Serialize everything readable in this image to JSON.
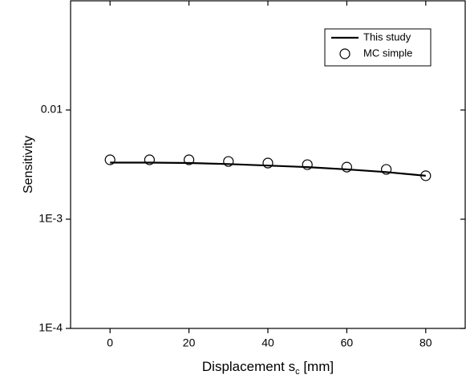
{
  "chart_data": {
    "type": "line",
    "log_y": true,
    "xlabel": "Displacement  s",
    "xlabel_subscript": "c",
    "xlabel_suffix": " [mm]",
    "ylabel": "Sensitivity",
    "x": [
      0,
      10,
      20,
      30,
      40,
      50,
      60,
      70,
      80
    ],
    "series": [
      {
        "name": "This study",
        "color": "#000000",
        "marker": "none",
        "values": [
          0.0033,
          0.0033,
          0.00327,
          0.0032,
          0.0031,
          0.003,
          0.00286,
          0.0027,
          0.0025
        ]
      },
      {
        "name": "MC simple",
        "color": "#000000",
        "marker": "circle-open",
        "values": [
          0.0035,
          0.0035,
          0.0035,
          0.00338,
          0.00327,
          0.00316,
          0.003,
          0.00286,
          0.0025
        ]
      }
    ],
    "xlim": [
      -10,
      90
    ],
    "xticks": [
      0,
      20,
      40,
      60,
      80
    ],
    "ylim": [
      0.0001,
      0.1
    ],
    "yticks": [
      {
        "value": 0.0001,
        "label": "1E-4"
      },
      {
        "value": 0.001,
        "label": "1E-3"
      },
      0.01
    ],
    "legend": "upper right"
  }
}
